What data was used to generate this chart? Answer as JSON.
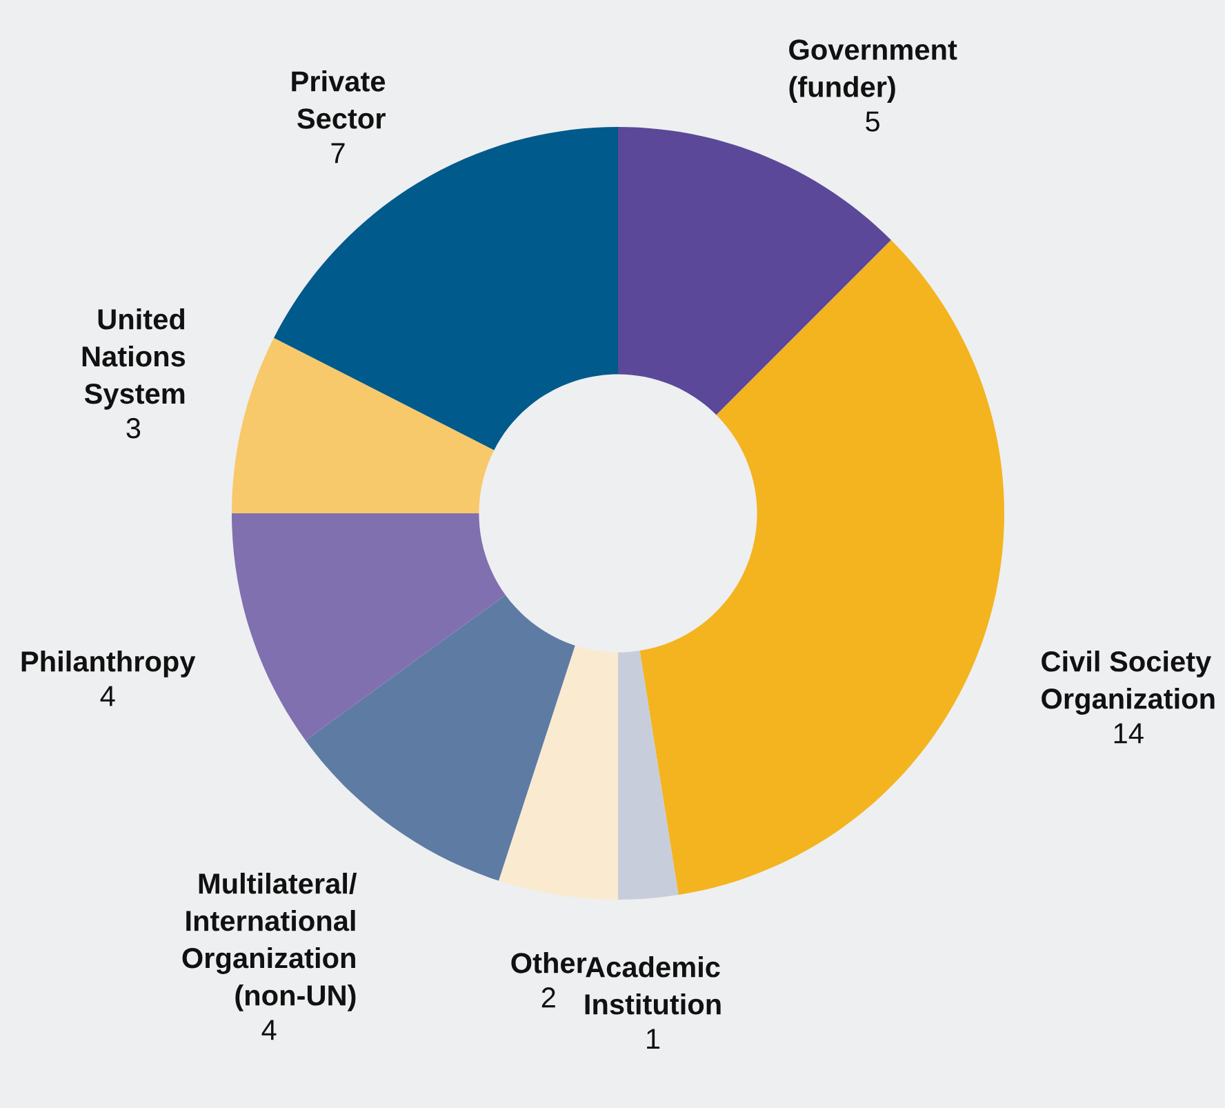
{
  "chart_data": {
    "type": "donut",
    "categories": [
      "Government\n(funder)",
      "Civil Society\nOrganization",
      "Academic\nInstitution",
      "Other",
      "Multilateral/\nInternational\nOrganization\n(non-UN)",
      "Philanthropy",
      "United\nNations\nSystem",
      "Private\nSector"
    ],
    "values": [
      5,
      14,
      1,
      2,
      4,
      4,
      3,
      7
    ],
    "colors": [
      "#5b4899",
      "#f3b41f",
      "#c8cddb",
      "#faead0",
      "#5e7ba3",
      "#8170b0",
      "#f8c96a",
      "#005a8b"
    ],
    "data_labels": true,
    "legend": false
  }
}
